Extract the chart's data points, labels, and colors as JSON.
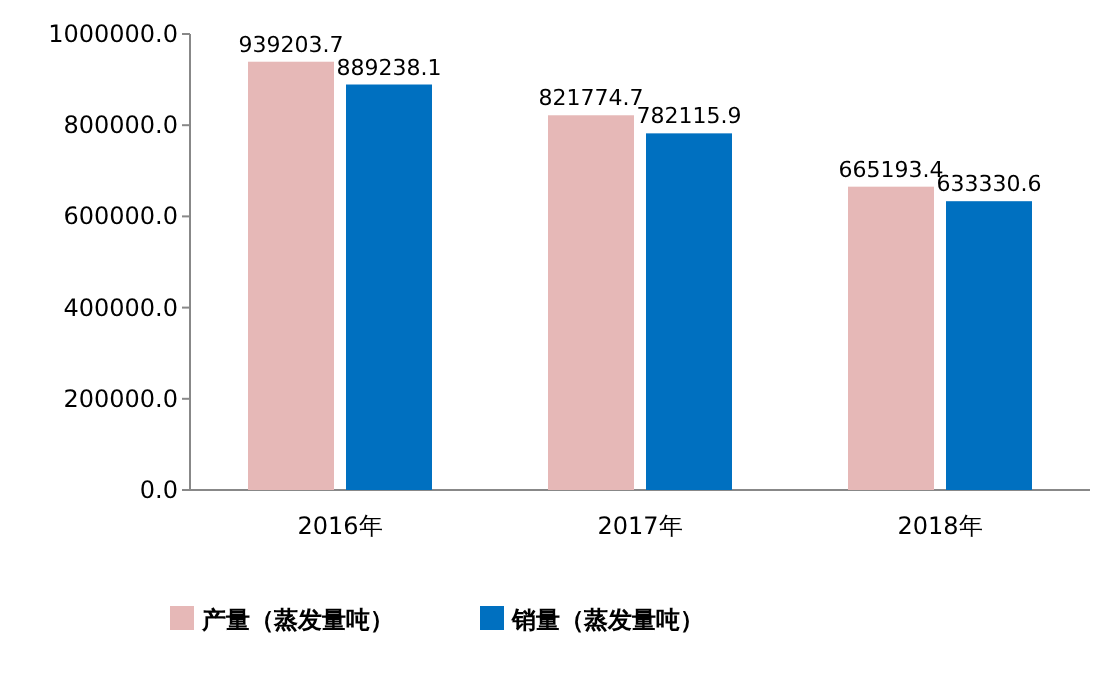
{
  "chart_data": {
    "type": "bar",
    "categories": [
      "2016年",
      "2017年",
      "2018年"
    ],
    "series": [
      {
        "name": "产量（蒸发量吨）",
        "color": "#e6b8b7",
        "values": [
          939203.7,
          821774.7,
          665193.4
        ]
      },
      {
        "name": "销量（蒸发量吨）",
        "color": "#0070c0",
        "values": [
          889238.1,
          782115.9,
          633330.6
        ]
      }
    ],
    "ylim": [
      0,
      1000000
    ],
    "yticks": [
      {
        "value": 0,
        "label": "0.0"
      },
      {
        "value": 200000,
        "label": "200000.0"
      },
      {
        "value": 400000,
        "label": "400000.0"
      },
      {
        "value": 600000,
        "label": "600000.0"
      },
      {
        "value": 800000,
        "label": "800000.0"
      },
      {
        "value": 1000000,
        "label": "1000000.0"
      }
    ],
    "data_labels": true,
    "legend": "bottom"
  }
}
